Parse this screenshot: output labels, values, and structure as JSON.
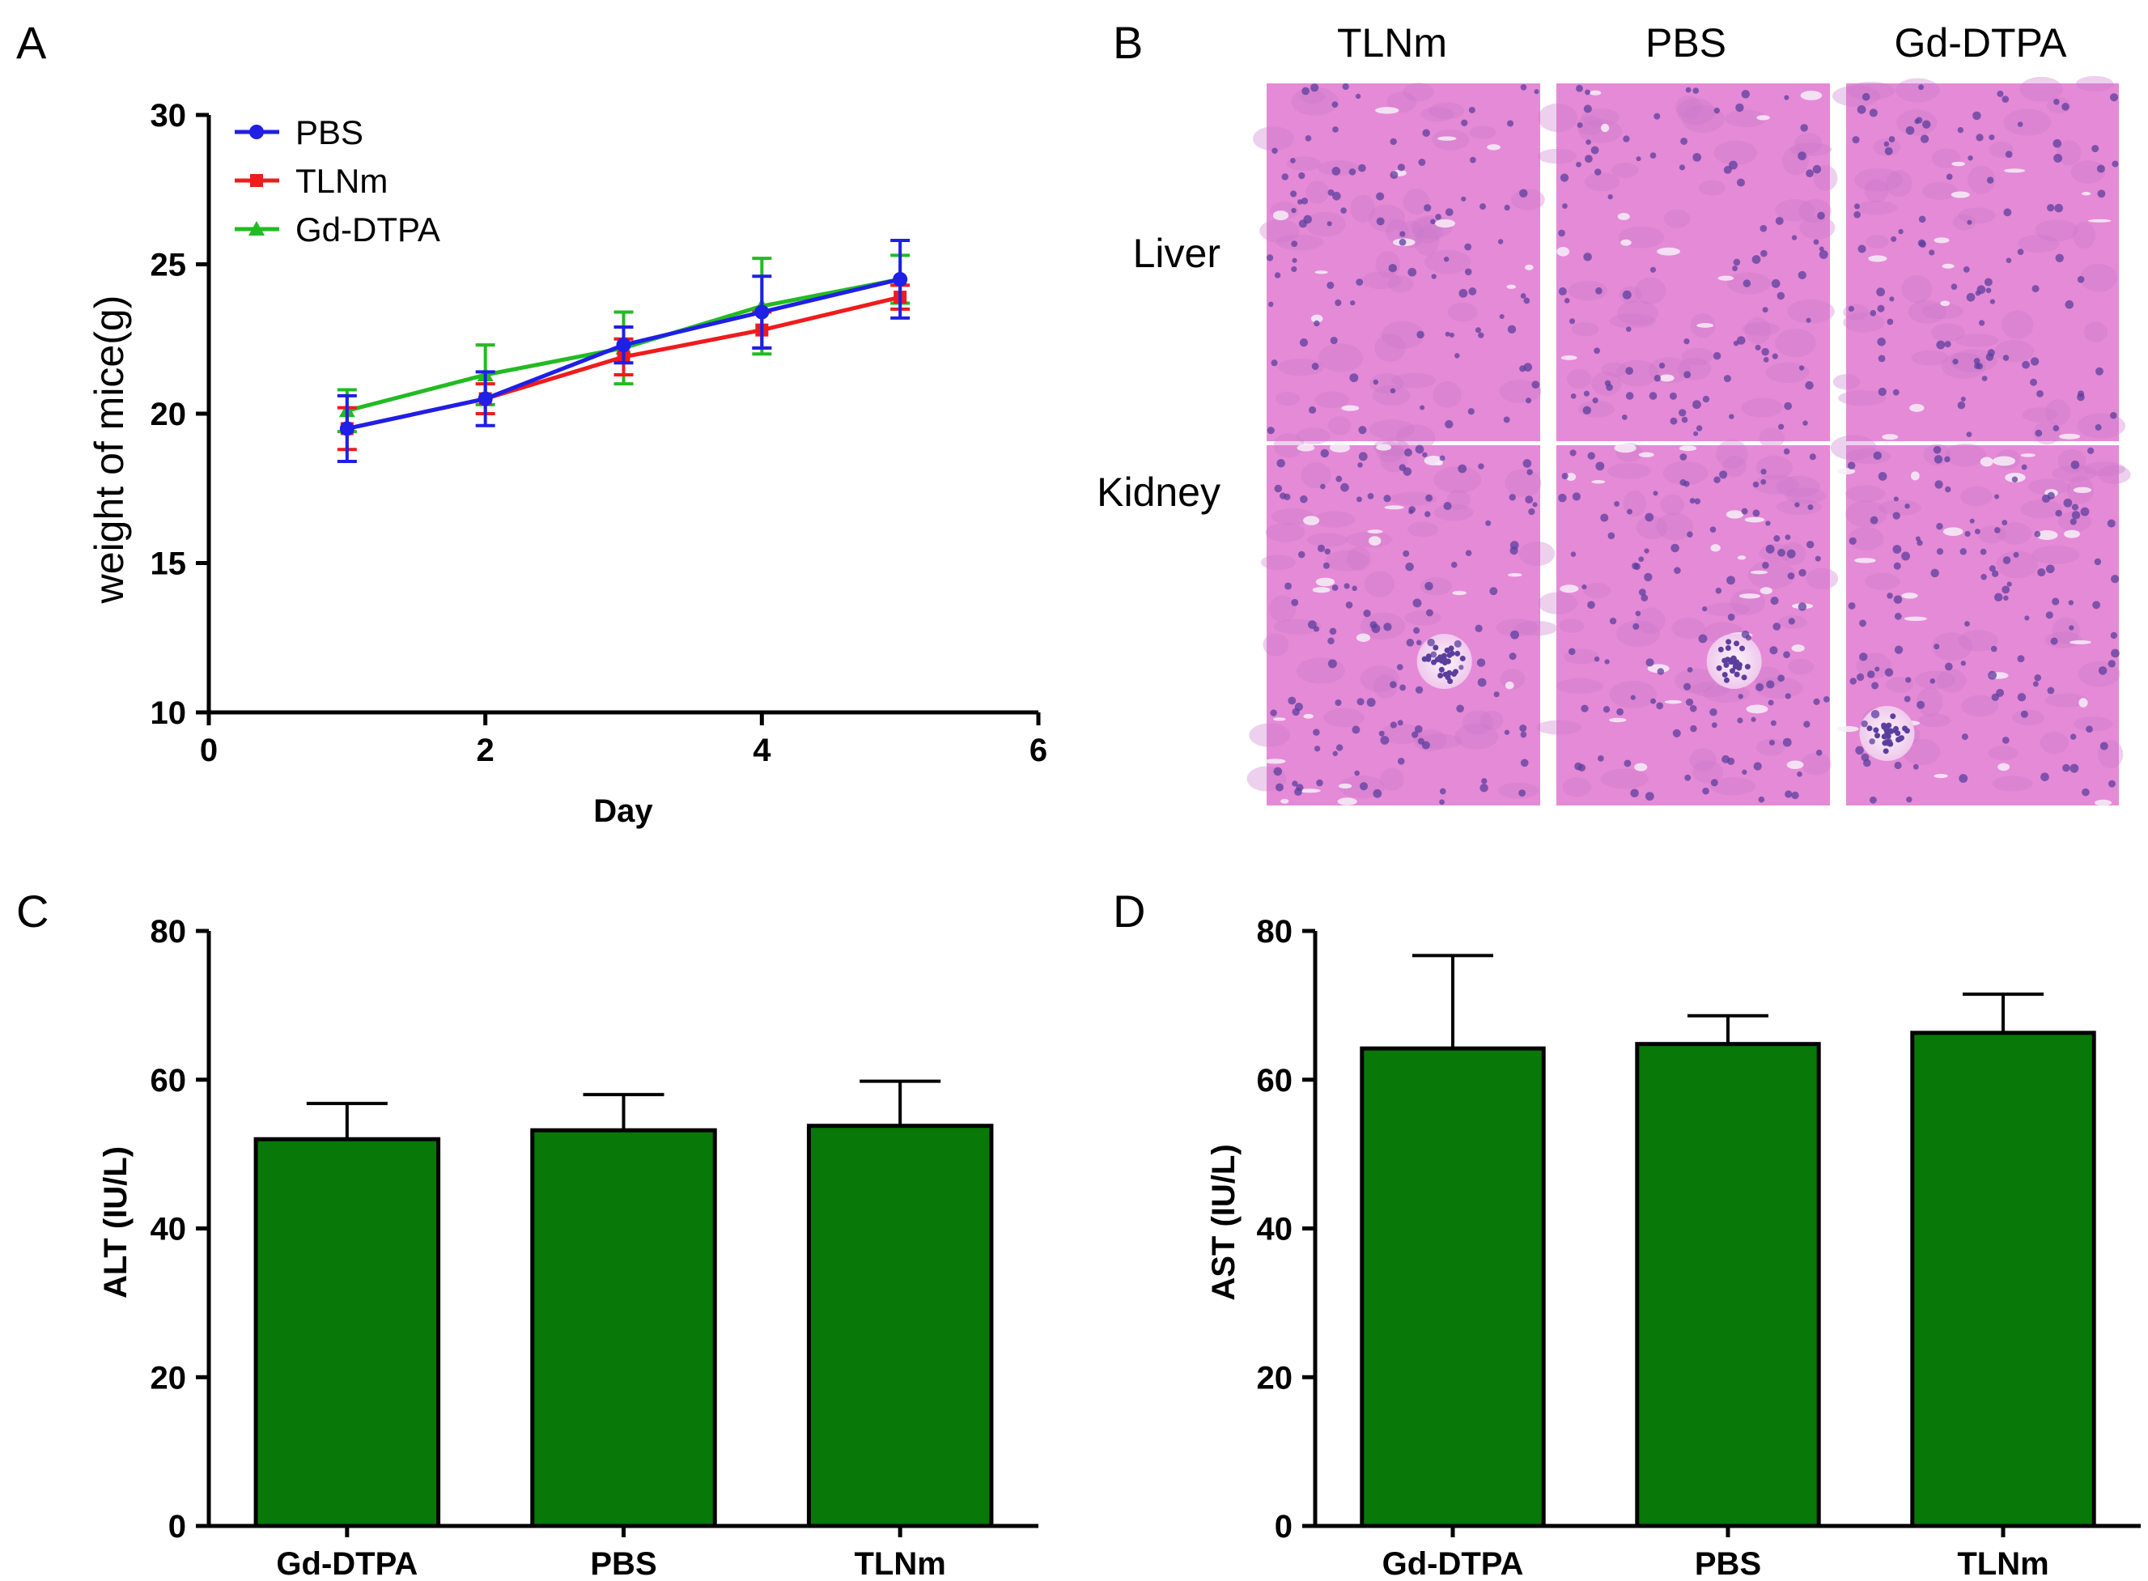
{
  "figure": {
    "panel_letters": [
      "A",
      "B",
      "C",
      "D"
    ],
    "histology": {
      "columns": [
        "TLNm",
        "PBS",
        "Gd-DTPA"
      ],
      "rows": [
        "Liver",
        "Kidney"
      ],
      "stain_colors": {
        "background": "#e58ad6",
        "cell": "#c878cc",
        "nucleus": "#5b3f9e",
        "lumen": "#f6eef8"
      }
    }
  },
  "chart_data": [
    {
      "panel": "A",
      "type": "line",
      "title": "",
      "xlabel": "Day",
      "ylabel": "weight of mice(g)",
      "xlim": [
        0,
        6
      ],
      "ylim": [
        10,
        30
      ],
      "xticks": [
        0,
        2,
        4,
        6
      ],
      "yticks": [
        10,
        15,
        20,
        25,
        30
      ],
      "x": [
        1,
        2,
        3,
        4,
        5
      ],
      "legend_position": "top-left",
      "series": [
        {
          "name": "PBS",
          "color": "#1f1fe6",
          "marker": "circle",
          "values": [
            19.5,
            20.5,
            22.3,
            23.4,
            24.5
          ],
          "errors": [
            1.1,
            0.9,
            0.6,
            1.2,
            1.3
          ]
        },
        {
          "name": "TLNm",
          "color": "#ee1c1c",
          "marker": "square",
          "values": [
            19.5,
            20.5,
            21.9,
            22.8,
            23.9
          ],
          "errors": [
            0.7,
            0.5,
            0.6,
            0.6,
            0.4
          ]
        },
        {
          "name": "Gd-DTPA",
          "color": "#22bb22",
          "marker": "triangle",
          "values": [
            20.1,
            21.3,
            22.2,
            23.6,
            24.5
          ],
          "errors": [
            0.7,
            1.0,
            1.2,
            1.6,
            0.8
          ]
        }
      ]
    },
    {
      "panel": "C",
      "type": "bar",
      "title": "",
      "xlabel": "",
      "ylabel": "ALT (IU/L)",
      "ylim": [
        0,
        80
      ],
      "yticks": [
        0,
        20,
        40,
        60,
        80
      ],
      "categories": [
        "Gd-DTPA",
        "PBS",
        "TLNm"
      ],
      "values": [
        52,
        53.2,
        53.8
      ],
      "errors": [
        4.8,
        4.8,
        6.0
      ],
      "color": "#087808"
    },
    {
      "panel": "D",
      "type": "bar",
      "title": "",
      "xlabel": "",
      "ylabel": "AST (IU/L)",
      "ylim": [
        0,
        80
      ],
      "yticks": [
        0,
        20,
        40,
        60,
        80
      ],
      "categories": [
        "Gd-DTPA",
        "PBS",
        "TLNm"
      ],
      "values": [
        64.2,
        64.8,
        66.3
      ],
      "errors": [
        12.5,
        3.8,
        5.2
      ],
      "color": "#087808"
    }
  ]
}
